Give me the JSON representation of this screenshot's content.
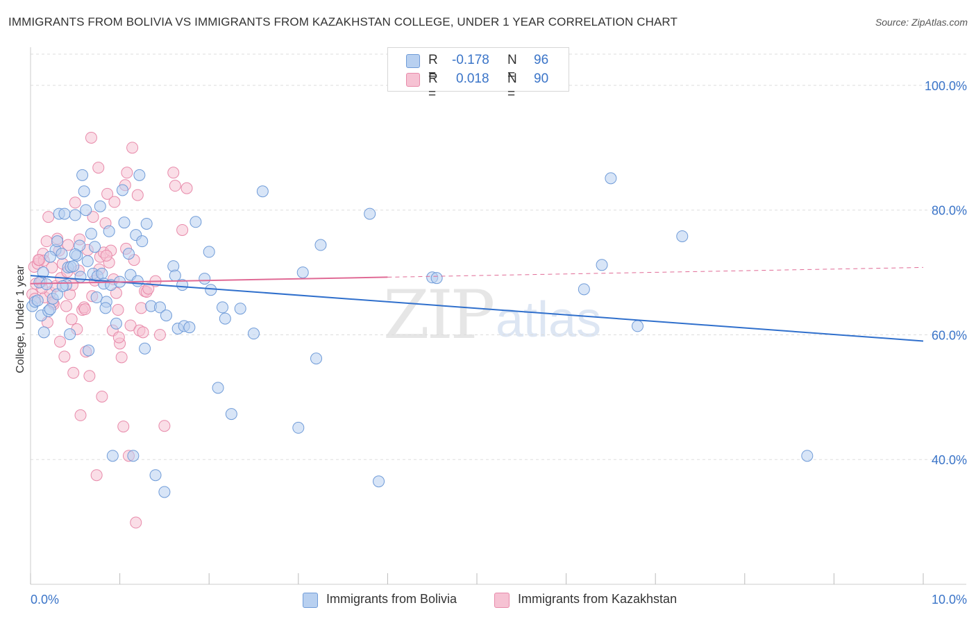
{
  "title": "IMMIGRANTS FROM BOLIVIA VS IMMIGRANTS FROM KAZAKHSTAN COLLEGE, UNDER 1 YEAR CORRELATION CHART",
  "source": "Source: ZipAtlas.com",
  "watermark": {
    "zip": "ZIP",
    "atlas": "atlas"
  },
  "colors": {
    "bolivia_fill": "#b8d0f0",
    "bolivia_stroke": "#6f9bd8",
    "bolivia_line": "#2f6fcc",
    "kazakhstan_fill": "#f6c2d3",
    "kazakhstan_stroke": "#e88aaa",
    "kazakhstan_line": "#e06a95",
    "axis_label": "#3a74c8",
    "grid": "#dddddd"
  },
  "legend": {
    "r_label": "R =",
    "n_label": "N =",
    "bolivia": {
      "r": "-0.178",
      "n": "96"
    },
    "kazakhstan": {
      "r": "0.018",
      "n": "90"
    }
  },
  "bottom_legend": {
    "bolivia": "Immigrants from Bolivia",
    "kazakhstan": "Immigrants from Kazakhstan"
  },
  "chart_data": {
    "type": "scatter",
    "title": "IMMIGRANTS FROM BOLIVIA VS IMMIGRANTS FROM KAZAKHSTAN COLLEGE, UNDER 1 YEAR CORRELATION CHART",
    "xlabel": "",
    "ylabel": "College, Under 1 year",
    "xlim": [
      0,
      10
    ],
    "ylim": [
      20,
      105
    ],
    "x_tick_labels": [
      "0.0%",
      "10.0%"
    ],
    "y_ticks": [
      40,
      60,
      80,
      100
    ],
    "y_tick_labels": [
      "40.0%",
      "60.0%",
      "80.0%",
      "100.0%"
    ],
    "grid": true,
    "series": [
      {
        "name": "Immigrants from Bolivia",
        "trend": {
          "x": [
            0.0,
            10.0
          ],
          "y": [
            69.5,
            59.0
          ],
          "dashed_from": null
        },
        "points": [
          [
            0.02,
            64.6
          ],
          [
            0.05,
            65.3
          ],
          [
            0.1,
            68.4
          ],
          [
            0.12,
            63.1
          ],
          [
            0.15,
            60.4
          ],
          [
            0.18,
            68.1
          ],
          [
            0.2,
            63.8
          ],
          [
            0.22,
            64.1
          ],
          [
            0.25,
            65.8
          ],
          [
            0.28,
            73.6
          ],
          [
            0.3,
            75.0
          ],
          [
            0.32,
            79.4
          ],
          [
            0.35,
            73.0
          ],
          [
            0.38,
            79.4
          ],
          [
            0.4,
            68.0
          ],
          [
            0.42,
            70.8
          ],
          [
            0.45,
            70.9
          ],
          [
            0.48,
            71.0
          ],
          [
            0.5,
            79.2
          ],
          [
            0.52,
            72.7
          ],
          [
            0.55,
            74.3
          ],
          [
            0.58,
            85.6
          ],
          [
            0.6,
            83.0
          ],
          [
            0.62,
            80.0
          ],
          [
            0.65,
            57.5
          ],
          [
            0.68,
            76.2
          ],
          [
            0.7,
            69.8
          ],
          [
            0.72,
            74.1
          ],
          [
            0.75,
            69.4
          ],
          [
            0.78,
            80.6
          ],
          [
            0.8,
            69.8
          ],
          [
            0.82,
            68.2
          ],
          [
            0.85,
            65.3
          ],
          [
            0.88,
            76.6
          ],
          [
            0.9,
            68.0
          ],
          [
            0.92,
            40.6
          ],
          [
            1.0,
            68.5
          ],
          [
            1.03,
            83.2
          ],
          [
            1.05,
            78.0
          ],
          [
            1.1,
            73.0
          ],
          [
            1.12,
            69.6
          ],
          [
            1.15,
            40.6
          ],
          [
            1.18,
            76.0
          ],
          [
            1.2,
            68.6
          ],
          [
            1.22,
            85.6
          ],
          [
            1.25,
            75.0
          ],
          [
            1.28,
            57.8
          ],
          [
            1.3,
            77.8
          ],
          [
            1.35,
            64.6
          ],
          [
            1.4,
            37.5
          ],
          [
            1.45,
            64.4
          ],
          [
            1.5,
            34.8
          ],
          [
            1.52,
            63.1
          ],
          [
            1.6,
            71.0
          ],
          [
            1.62,
            69.5
          ],
          [
            1.65,
            61.0
          ],
          [
            1.7,
            68.0
          ],
          [
            1.72,
            61.4
          ],
          [
            1.78,
            61.2
          ],
          [
            1.85,
            78.1
          ],
          [
            1.95,
            69.0
          ],
          [
            2.0,
            73.3
          ],
          [
            2.02,
            67.2
          ],
          [
            2.1,
            51.5
          ],
          [
            2.15,
            64.4
          ],
          [
            2.18,
            62.6
          ],
          [
            2.25,
            47.3
          ],
          [
            2.35,
            64.2
          ],
          [
            2.5,
            60.2
          ],
          [
            2.6,
            83.0
          ],
          [
            3.0,
            45.1
          ],
          [
            3.05,
            70.0
          ],
          [
            3.2,
            56.2
          ],
          [
            3.25,
            74.4
          ],
          [
            3.8,
            79.4
          ],
          [
            3.9,
            36.5
          ],
          [
            4.5,
            69.2
          ],
          [
            4.55,
            69.1
          ],
          [
            6.2,
            67.3
          ],
          [
            6.4,
            71.2
          ],
          [
            6.5,
            85.1
          ],
          [
            6.8,
            61.4
          ],
          [
            7.3,
            75.8
          ],
          [
            8.7,
            40.6
          ],
          [
            0.08,
            65.5
          ],
          [
            0.14,
            70.0
          ],
          [
            0.22,
            72.5
          ],
          [
            0.3,
            66.5
          ],
          [
            0.36,
            67.8
          ],
          [
            0.44,
            60.1
          ],
          [
            0.5,
            72.9
          ],
          [
            0.56,
            69.3
          ],
          [
            0.64,
            71.8
          ],
          [
            0.74,
            66.0
          ],
          [
            0.84,
            64.3
          ],
          [
            0.96,
            61.8
          ]
        ]
      },
      {
        "name": "Immigrants from Kazakhstan",
        "trend": {
          "x": [
            0.0,
            10.0
          ],
          "y": [
            68.2,
            70.8
          ],
          "dashed_from": 4.0
        },
        "points": [
          [
            0.02,
            66.5
          ],
          [
            0.04,
            70.9
          ],
          [
            0.05,
            65.8
          ],
          [
            0.06,
            68.2
          ],
          [
            0.08,
            71.4
          ],
          [
            0.1,
            72.0
          ],
          [
            0.12,
            68.5
          ],
          [
            0.14,
            73.0
          ],
          [
            0.15,
            71.9
          ],
          [
            0.16,
            66.0
          ],
          [
            0.18,
            75.0
          ],
          [
            0.2,
            78.9
          ],
          [
            0.22,
            66.8
          ],
          [
            0.24,
            70.8
          ],
          [
            0.26,
            64.9
          ],
          [
            0.28,
            67.8
          ],
          [
            0.3,
            75.4
          ],
          [
            0.32,
            73.5
          ],
          [
            0.34,
            69.1
          ],
          [
            0.36,
            71.4
          ],
          [
            0.38,
            56.5
          ],
          [
            0.4,
            64.6
          ],
          [
            0.42,
            74.4
          ],
          [
            0.44,
            66.5
          ],
          [
            0.46,
            62.5
          ],
          [
            0.48,
            53.9
          ],
          [
            0.5,
            81.2
          ],
          [
            0.52,
            60.9
          ],
          [
            0.54,
            70.3
          ],
          [
            0.56,
            47.1
          ],
          [
            0.58,
            64.0
          ],
          [
            0.6,
            64.4
          ],
          [
            0.62,
            57.3
          ],
          [
            0.64,
            73.6
          ],
          [
            0.66,
            53.4
          ],
          [
            0.68,
            91.6
          ],
          [
            0.7,
            78.9
          ],
          [
            0.72,
            68.7
          ],
          [
            0.74,
            37.5
          ],
          [
            0.76,
            86.8
          ],
          [
            0.78,
            72.5
          ],
          [
            0.8,
            50.1
          ],
          [
            0.82,
            73.2
          ],
          [
            0.84,
            77.9
          ],
          [
            0.86,
            82.6
          ],
          [
            0.88,
            71.6
          ],
          [
            0.9,
            73.5
          ],
          [
            0.92,
            60.7
          ],
          [
            0.94,
            81.3
          ],
          [
            0.96,
            66.7
          ],
          [
            0.98,
            64.0
          ],
          [
            1.0,
            58.6
          ],
          [
            1.02,
            56.4
          ],
          [
            1.04,
            45.3
          ],
          [
            1.06,
            84.0
          ],
          [
            1.08,
            86.0
          ],
          [
            1.1,
            40.6
          ],
          [
            1.12,
            61.5
          ],
          [
            1.14,
            90.0
          ],
          [
            1.16,
            72.0
          ],
          [
            1.18,
            29.9
          ],
          [
            1.2,
            82.4
          ],
          [
            1.22,
            60.7
          ],
          [
            1.24,
            64.3
          ],
          [
            1.26,
            60.4
          ],
          [
            1.28,
            67.0
          ],
          [
            1.3,
            66.9
          ],
          [
            1.32,
            67.4
          ],
          [
            1.4,
            68.6
          ],
          [
            1.45,
            60.0
          ],
          [
            1.5,
            45.4
          ],
          [
            1.6,
            86.0
          ],
          [
            1.62,
            83.9
          ],
          [
            1.7,
            76.8
          ],
          [
            1.75,
            83.5
          ],
          [
            0.09,
            72.0
          ],
          [
            0.13,
            67.5
          ],
          [
            0.19,
            62.0
          ],
          [
            0.25,
            65.2
          ],
          [
            0.33,
            58.9
          ],
          [
            0.41,
            70.1
          ],
          [
            0.47,
            68.0
          ],
          [
            0.55,
            75.3
          ],
          [
            0.61,
            64.1
          ],
          [
            0.69,
            66.2
          ],
          [
            0.77,
            70.5
          ],
          [
            0.85,
            72.7
          ],
          [
            0.93,
            68.9
          ],
          [
            0.99,
            59.6
          ],
          [
            1.07,
            73.8
          ]
        ]
      }
    ]
  }
}
